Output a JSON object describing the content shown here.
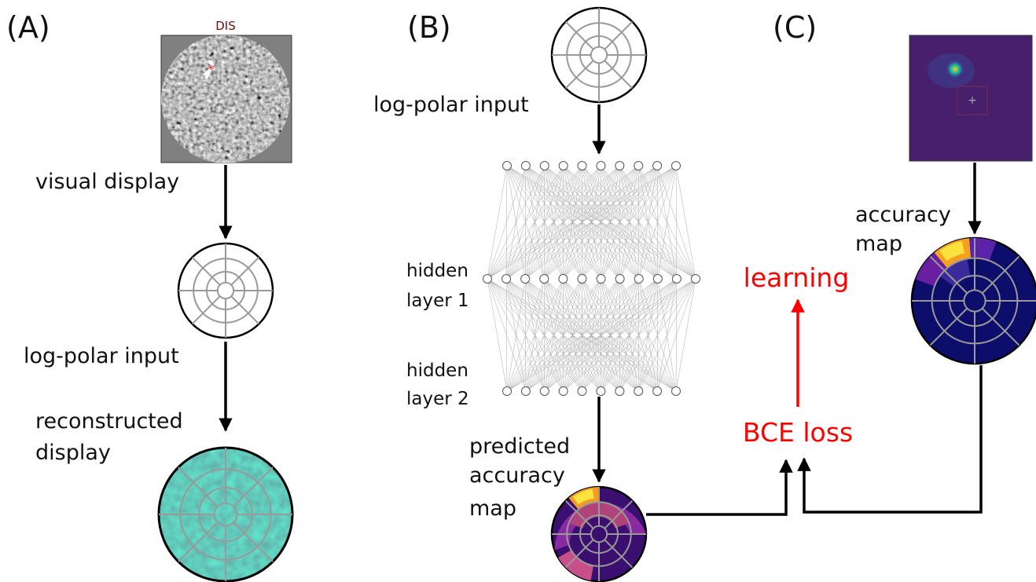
{
  "panels": {
    "a": {
      "label": "(A)",
      "image_title": "DIS",
      "display_label": "visual display",
      "input_label": "log-polar input",
      "reconstructed_label": [
        "reconstructed",
        "display"
      ]
    },
    "b": {
      "label": "(B)",
      "input_label": "log-polar input",
      "hidden1": [
        "hidden",
        "layer 1"
      ],
      "hidden2": [
        "hidden",
        "layer 2"
      ],
      "predicted_label": [
        "predicted",
        "accuracy",
        "map"
      ]
    },
    "c": {
      "label": "(C)",
      "accuracy_label": [
        "accuracy",
        "map"
      ],
      "learning": "learning",
      "loss": "BCE loss"
    }
  }
}
